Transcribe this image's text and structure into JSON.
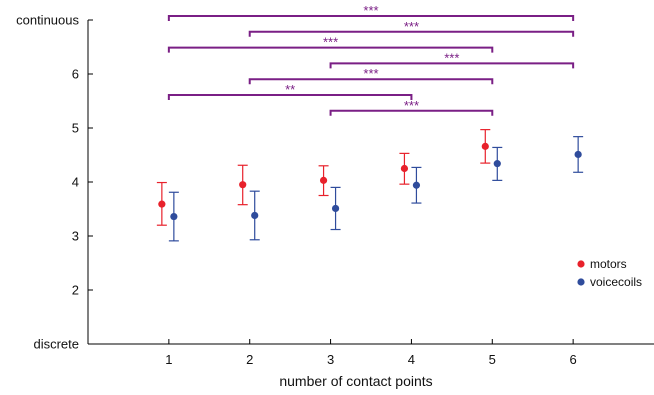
{
  "chart_data": {
    "type": "scatter",
    "title": "",
    "xlabel": "number of contact points",
    "ylabel": "",
    "x": [
      1,
      2,
      3,
      4,
      5,
      6
    ],
    "xlim": [
      0.0,
      7.0
    ],
    "ylim": [
      1.0,
      7.0
    ],
    "xticks": [
      "1",
      "2",
      "3",
      "4",
      "5",
      "6"
    ],
    "yticks": [
      {
        "value": 1,
        "label": "discrete"
      },
      {
        "value": 2,
        "label": "2"
      },
      {
        "value": 3,
        "label": "3"
      },
      {
        "value": 4,
        "label": "4"
      },
      {
        "value": 5,
        "label": "5"
      },
      {
        "value": 6,
        "label": "6"
      },
      {
        "value": 7,
        "label": "continuous"
      }
    ],
    "grid": false,
    "legend_position": "lower-right",
    "series": [
      {
        "name": "motors",
        "color": "#e8212b",
        "x": [
          1,
          2,
          3,
          4,
          5
        ],
        "y": [
          3.59,
          3.95,
          4.03,
          4.25,
          4.66
        ],
        "err_low": [
          3.2,
          3.58,
          3.75,
          3.96,
          4.35
        ],
        "err_high": [
          3.99,
          4.31,
          4.3,
          4.53,
          4.97
        ]
      },
      {
        "name": "voicecoils",
        "color": "#2f4c9c",
        "x": [
          1,
          2,
          3,
          4,
          5,
          6
        ],
        "y": [
          3.36,
          3.38,
          3.51,
          3.94,
          4.34,
          4.51
        ],
        "err_low": [
          2.91,
          2.93,
          3.12,
          3.61,
          4.03,
          4.18
        ],
        "err_high": [
          3.81,
          3.83,
          3.9,
          4.27,
          4.64,
          4.84
        ]
      }
    ],
    "significance": {
      "color": "#7a1f85",
      "brackets": [
        {
          "from": 1,
          "to": 6,
          "label": "***"
        },
        {
          "from": 2,
          "to": 6,
          "label": "***"
        },
        {
          "from": 1,
          "to": 5,
          "label": "***"
        },
        {
          "from": 3,
          "to": 6,
          "label": "***"
        },
        {
          "from": 2,
          "to": 5,
          "label": "***"
        },
        {
          "from": 1,
          "to": 4,
          "label": "**"
        },
        {
          "from": 3,
          "to": 5,
          "label": "***"
        }
      ]
    }
  }
}
